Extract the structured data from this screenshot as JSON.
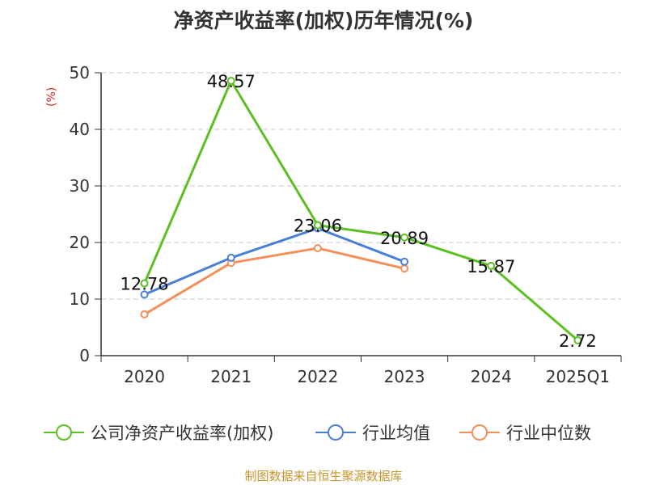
{
  "chart_data": {
    "type": "line",
    "title": "净资产收益率(加权)历年情况(%)",
    "xlabel": "",
    "ylabel": "(%)",
    "categories": [
      "2020",
      "2021",
      "2022",
      "2023",
      "2024",
      "2025Q1"
    ],
    "ylim": [
      0,
      50
    ],
    "yticks": [
      0,
      10,
      20,
      30,
      40,
      50
    ],
    "grid": true,
    "legend_position": "bottom",
    "series": [
      {
        "name": "公司净资产收益率(加权)",
        "color": "#5cbf22",
        "values": [
          12.78,
          48.57,
          23.06,
          20.89,
          15.87,
          2.72
        ],
        "labels": [
          "12.78",
          "48.57",
          "23.06",
          "20.89",
          "15.87",
          "2.72"
        ]
      },
      {
        "name": "行业均值",
        "color": "#4a7fd8",
        "values": [
          10.8,
          17.3,
          22.5,
          16.6,
          null,
          null
        ]
      },
      {
        "name": "行业中位数",
        "color": "#f58f5a",
        "values": [
          7.3,
          16.4,
          19.0,
          15.4,
          null,
          null
        ]
      }
    ]
  },
  "source": "制图数据来自恒生聚源数据库"
}
